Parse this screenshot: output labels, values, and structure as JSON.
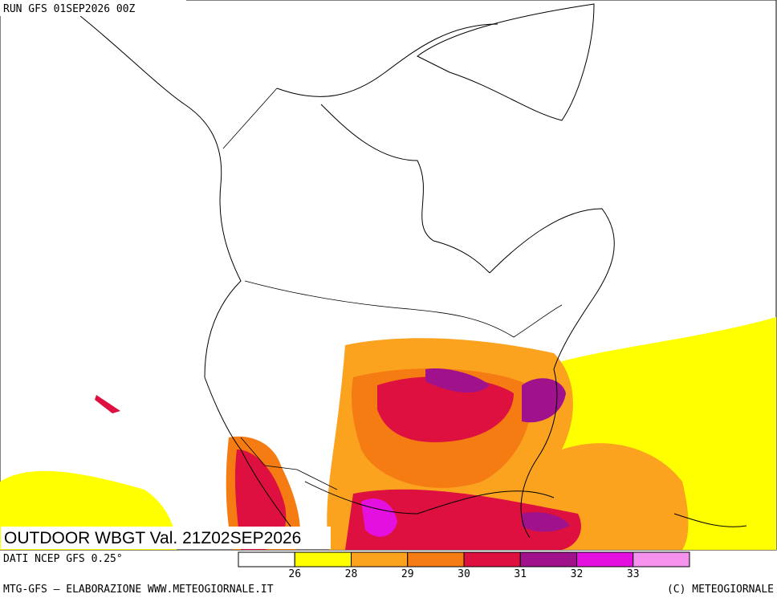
{
  "header": {
    "run": "RUN GFS 01SEP2026 00Z"
  },
  "map": {
    "caption": "OUTDOOR WBGT Val. 21Z02SEP2026"
  },
  "legend": {
    "source": "DATI NCEP GFS 0.25°",
    "levels": [
      26,
      28,
      29,
      30,
      31,
      32,
      33
    ],
    "colors": [
      "#ffffff",
      "#ffff00",
      "#fba31f",
      "#f57c12",
      "#dd1040",
      "#a0128c",
      "#e410e0",
      "#f592ee"
    ]
  },
  "footer": {
    "left": "MTG-GFS – ELABORAZIONE WWW.METEOGIORNALE.IT",
    "right": "(C) METEOGIORNALE"
  }
}
